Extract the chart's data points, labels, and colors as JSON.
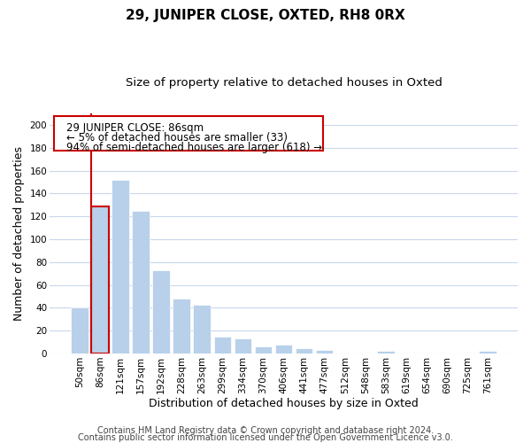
{
  "title": "29, JUNIPER CLOSE, OXTED, RH8 0RX",
  "subtitle": "Size of property relative to detached houses in Oxted",
  "xlabel": "Distribution of detached houses by size in Oxted",
  "ylabel": "Number of detached properties",
  "bar_labels": [
    "50sqm",
    "86sqm",
    "121sqm",
    "157sqm",
    "192sqm",
    "228sqm",
    "263sqm",
    "299sqm",
    "334sqm",
    "370sqm",
    "406sqm",
    "441sqm",
    "477sqm",
    "512sqm",
    "548sqm",
    "583sqm",
    "619sqm",
    "654sqm",
    "690sqm",
    "725sqm",
    "761sqm"
  ],
  "bar_values": [
    40,
    129,
    152,
    125,
    73,
    48,
    43,
    15,
    13,
    6,
    8,
    5,
    3,
    0,
    0,
    2,
    0,
    0,
    0,
    0,
    2
  ],
  "bar_color": "#b8d0ea",
  "highlight_bar_index": 1,
  "highlight_edge_color": "#cc0000",
  "annotation_box_text": "29 JUNIPER CLOSE: 86sqm\n← 5% of detached houses are smaller (33)\n94% of semi-detached houses are larger (618) →",
  "ylim": [
    0,
    210
  ],
  "yticks": [
    0,
    20,
    40,
    60,
    80,
    100,
    120,
    140,
    160,
    180,
    200
  ],
  "footer_line1": "Contains HM Land Registry data © Crown copyright and database right 2024.",
  "footer_line2": "Contains public sector information licensed under the Open Government Licence v3.0.",
  "background_color": "#ffffff",
  "grid_color": "#c8d8ec",
  "title_fontsize": 11,
  "subtitle_fontsize": 9.5,
  "axis_label_fontsize": 9,
  "tick_fontsize": 7.5,
  "annotation_fontsize": 8.5,
  "footer_fontsize": 7
}
